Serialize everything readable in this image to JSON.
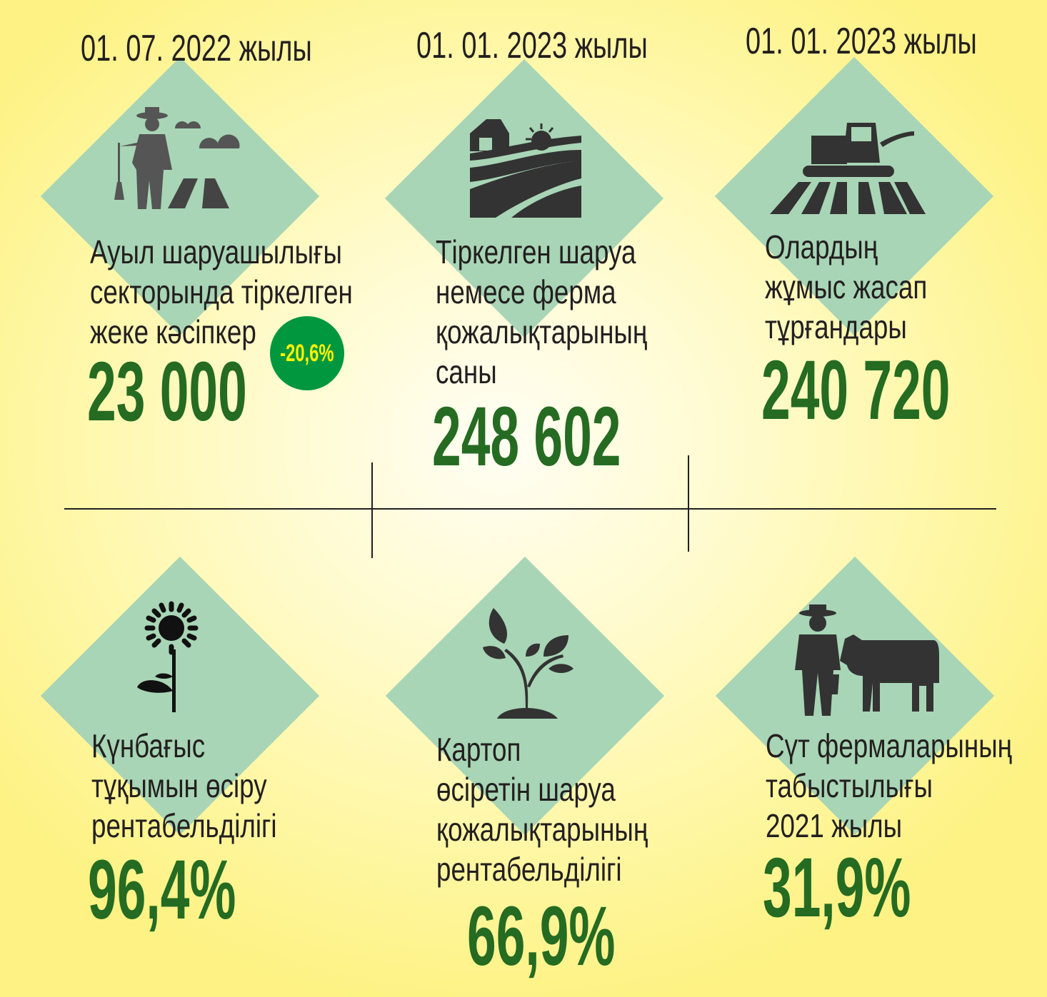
{
  "top": [
    {
      "date": "01. 07. 2022 жылы",
      "desc": [
        "Ауыл шаруашылығы",
        "секторында тіркелген",
        "жеке кәсіпкер"
      ],
      "value": "23 000",
      "badge": "-20,6%",
      "icon": "farmer-field-icon"
    },
    {
      "date": "01. 01. 2023 жылы",
      "desc": [
        "Тіркелген шаруа",
        "немесе ферма",
        "қожалықтарының",
        "саны"
      ],
      "value": "248 602",
      "icon": "farm-barn-field-icon"
    },
    {
      "date": "01. 01. 2023 жылы",
      "desc": [
        "Олардың",
        "жұмыс жасап",
        "тұрғандары"
      ],
      "value": "240 720",
      "icon": "combine-harvester-icon"
    }
  ],
  "bottom": [
    {
      "desc": [
        "Күнбағыс",
        "тұқымын өсіру",
        "рентабельділігі"
      ],
      "value": "96,4%",
      "icon": "sunflower-icon"
    },
    {
      "desc": [
        "Картоп",
        "өсіретін шаруа",
        "қожалықтарының",
        "рентабельділігі"
      ],
      "value": "66,9%",
      "icon": "sprout-icon"
    },
    {
      "desc": [
        "Сүт фермаларының",
        "табыстылығы",
        "2021 жылы"
      ],
      "value": "31,9%",
      "icon": "farmer-cow-icon"
    }
  ],
  "colors": {
    "diamond": "#a8d5b5",
    "value": "#256b22",
    "badge": "#00973f",
    "badge_text": "#fff200",
    "background": "#fff7a6"
  }
}
